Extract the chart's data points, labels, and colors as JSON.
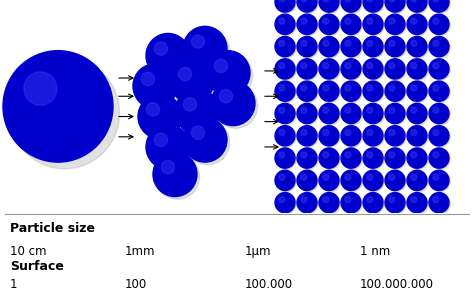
{
  "background_color": "#ffffff",
  "ball_color": "#0000cc",
  "highlight_color": "#3333ee",
  "shadow_color": "#aaaaaa",
  "arrow_color": "black",
  "text_color": "#000000",
  "particle_size_label": "Particle size",
  "surface_label": "Surface",
  "size_values": [
    "10 cm",
    "1mm",
    "1μm",
    "1 nm"
  ],
  "surface_values": [
    "1",
    "100",
    "100.000",
    "100.000.000"
  ],
  "fig_width": 4.74,
  "fig_height": 3.04,
  "dpi": 100
}
